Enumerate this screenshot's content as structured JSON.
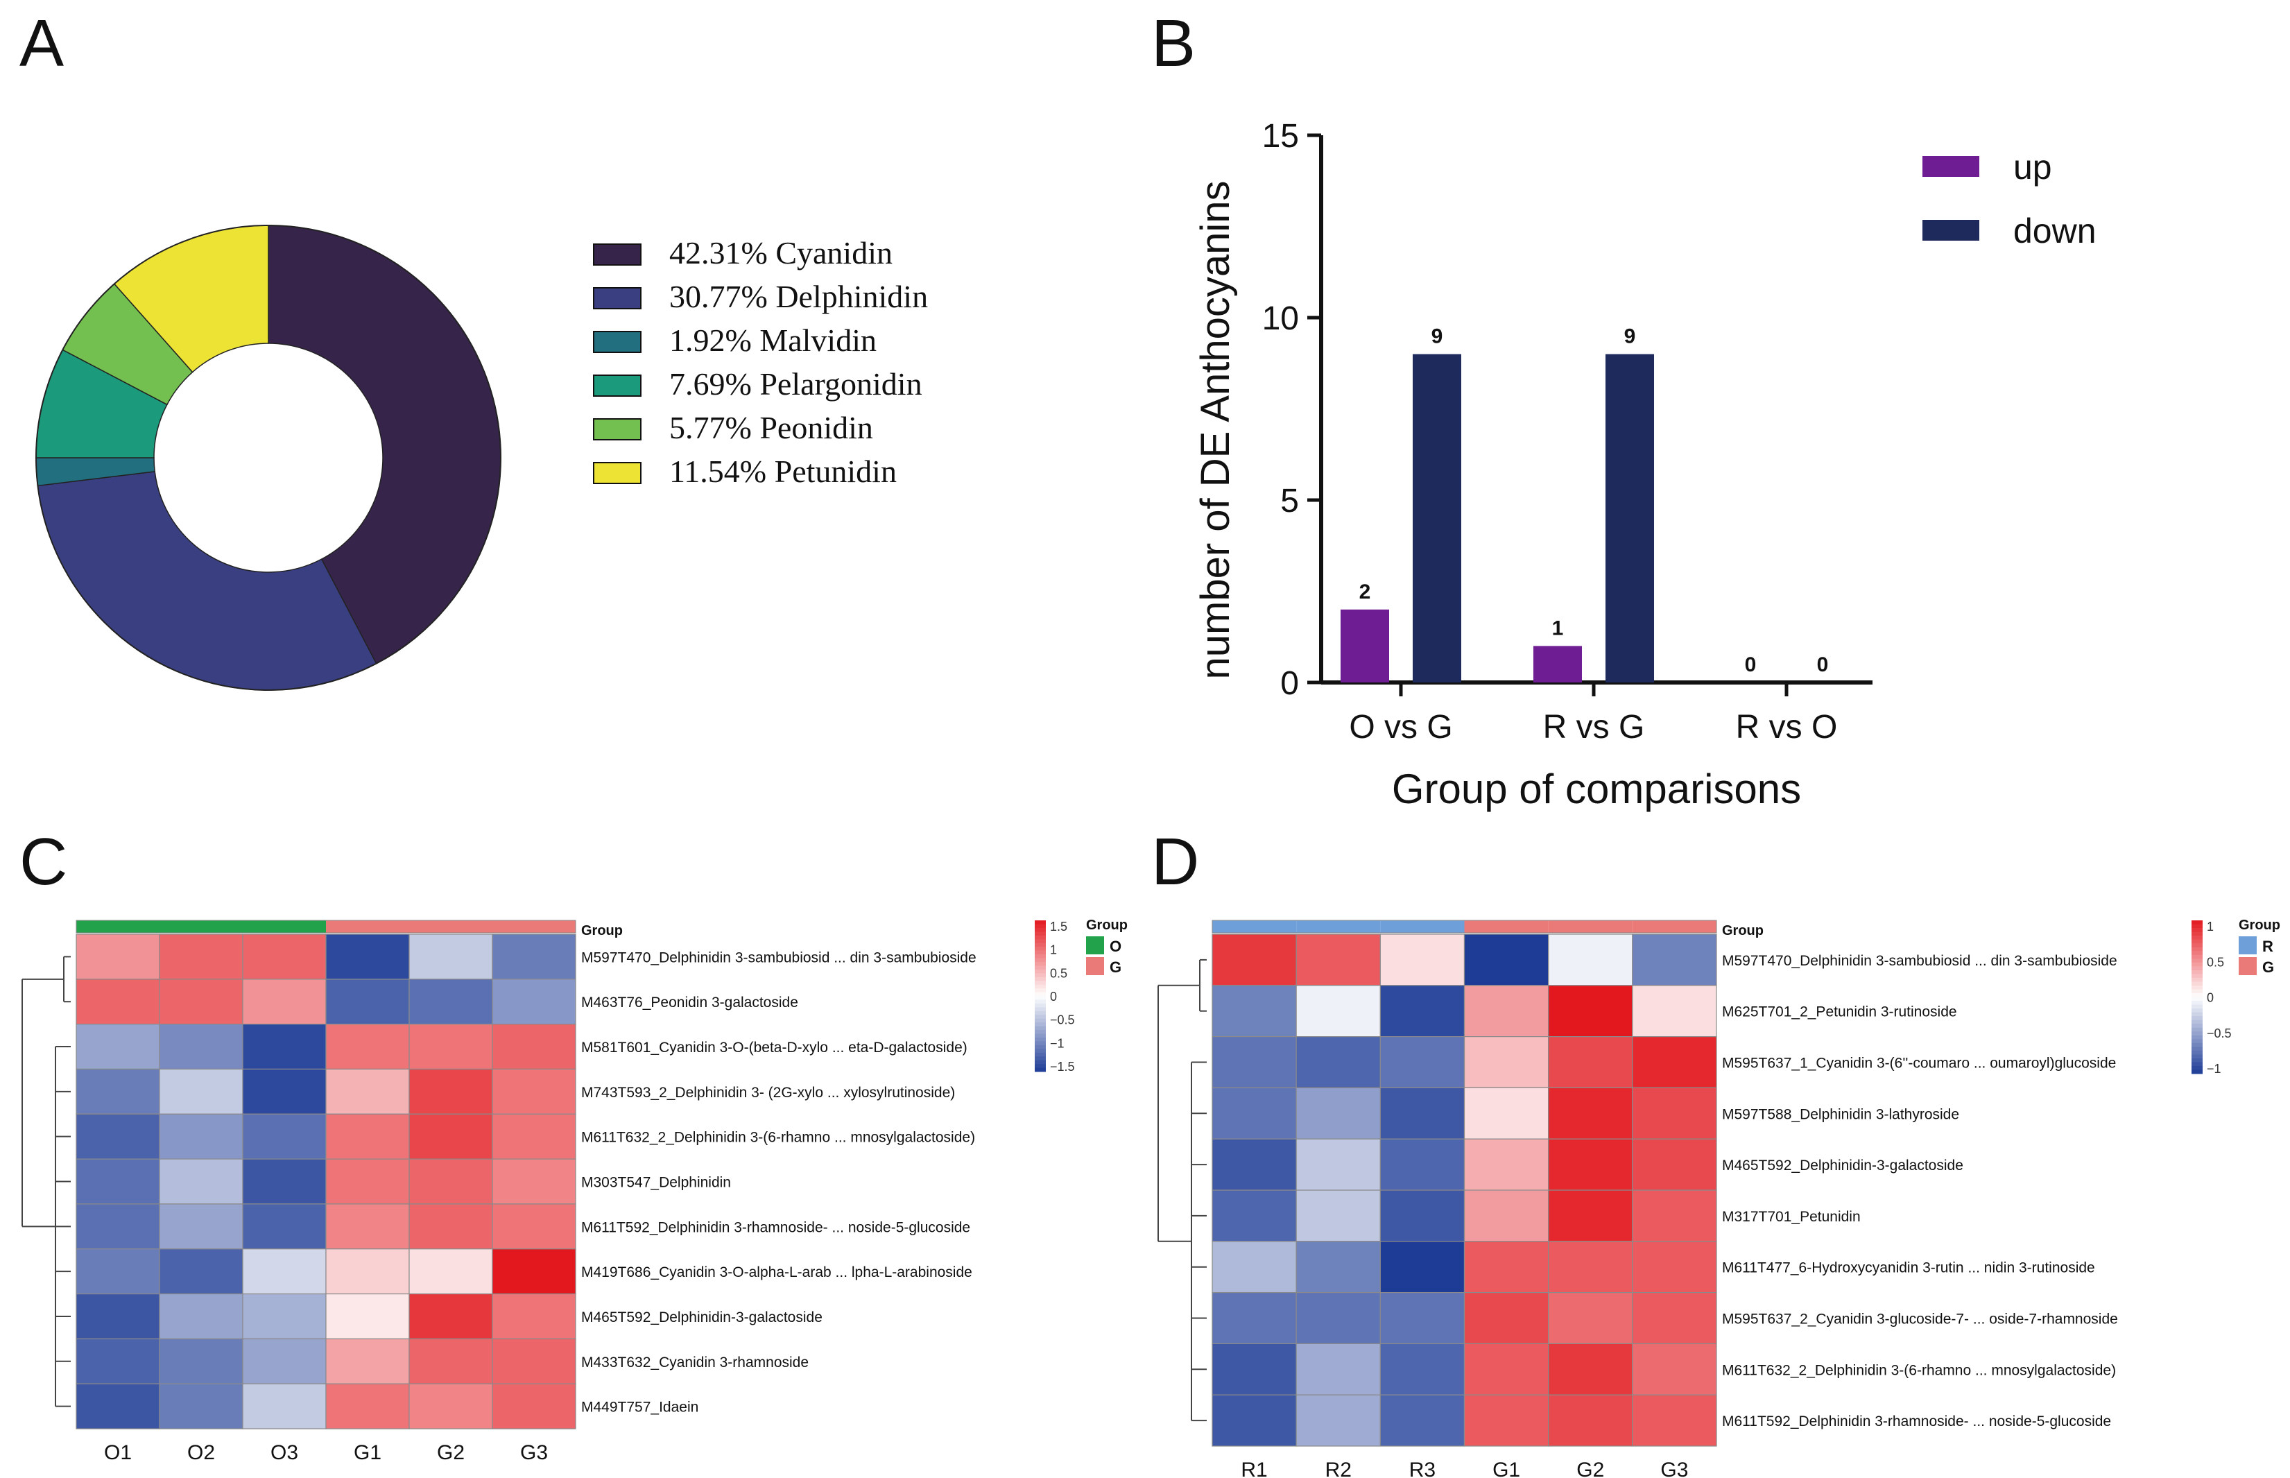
{
  "panels": {
    "A": "A",
    "B": "B",
    "C": "C",
    "D": "D"
  },
  "chart_data": [
    {
      "id": "A",
      "type": "pie",
      "variant": "donut",
      "labels": [
        "Cyanidin",
        "Delphinidin",
        "Malvidin",
        "Pelargonidin",
        "Peonidin",
        "Petunidin"
      ],
      "percent_text": [
        "42.31%",
        "30.77%",
        "1.92%",
        "7.69%",
        "5.77%",
        "11.54%"
      ],
      "values": [
        42.31,
        30.77,
        1.92,
        7.69,
        5.77,
        11.54
      ],
      "colors": [
        "#36244a",
        "#393f80",
        "#226f7f",
        "#1c9a7c",
        "#73bf4f",
        "#ede334"
      ],
      "legend_position": "right"
    },
    {
      "id": "B",
      "type": "bar",
      "categories": [
        "O vs G",
        "R vs G",
        "R vs O"
      ],
      "series": [
        {
          "name": "up",
          "values": [
            2,
            1,
            0
          ],
          "color": "#6e1d92"
        },
        {
          "name": "down",
          "values": [
            9,
            9,
            0
          ],
          "color": "#1e2a5b"
        }
      ],
      "xlabel": "Group of comparisons",
      "ylabel": "number  of DE Anthocyanins",
      "ylim": [
        0,
        15
      ],
      "yticks": [
        0,
        5,
        10,
        15
      ],
      "ytick_labels": [
        "0",
        "5",
        "10",
        "15"
      ],
      "legend_position": "top-right",
      "data_labels": true
    },
    {
      "id": "C",
      "type": "heatmap",
      "columns": [
        "O1",
        "O2",
        "O3",
        "G1",
        "G2",
        "G3"
      ],
      "group_label": "Group",
      "groups": [
        "O",
        "O",
        "O",
        "G",
        "G",
        "G"
      ],
      "legend_groups": [
        {
          "name": "O",
          "color": "#22a24a"
        },
        {
          "name": "G",
          "color": "#ea7a78"
        }
      ],
      "rows": [
        "M597T470_Delphinidin 3-sambubiosid ... din 3-sambubioside",
        "M463T76_Peonidin 3-galactoside",
        "M581T601_Cyanidin 3-O-(beta-D-xylo ... eta-D-galactoside)",
        "M743T593_2_Delphinidin 3- (2G-xylo ... xylosylrutinoside)",
        "M611T632_2_Delphinidin 3-(6-rhamno ... mnosylgalactoside)",
        "M303T547_Delphinidin",
        "M611T592_Delphinidin 3-rhamnoside- ... noside-5-glucoside",
        "M419T686_Cyanidin 3-O-alpha-L-arab ... lpha-L-arabinoside",
        "M465T592_Delphinidin-3-galactoside",
        "M433T632_Cyanidin 3-rhamnoside",
        "M449T757_Idaein"
      ],
      "values": [
        [
          0.7,
          1.0,
          1.0,
          -1.4,
          -0.4,
          -1.0
        ],
        [
          1.0,
          1.0,
          0.7,
          -1.2,
          -1.1,
          -0.8
        ],
        [
          -0.7,
          -0.9,
          -1.4,
          0.9,
          0.9,
          1.0
        ],
        [
          -1.0,
          -0.4,
          -1.4,
          0.5,
          1.2,
          0.9
        ],
        [
          -1.2,
          -0.8,
          -1.1,
          0.9,
          1.2,
          0.9
        ],
        [
          -1.1,
          -0.5,
          -1.3,
          0.9,
          1.0,
          0.8
        ],
        [
          -1.1,
          -0.7,
          -1.2,
          0.8,
          1.0,
          0.9
        ],
        [
          -1.0,
          -1.2,
          -0.3,
          0.3,
          0.2,
          1.5
        ],
        [
          -1.3,
          -0.7,
          -0.6,
          0.15,
          1.3,
          0.9
        ],
        [
          -1.2,
          -1.0,
          -0.7,
          0.6,
          1.0,
          1.0
        ],
        [
          -1.3,
          -1.0,
          -0.4,
          0.9,
          0.8,
          1.0
        ]
      ],
      "colorbar_ticks": [
        "1.5",
        "1",
        "0.5",
        "0",
        "−0.5",
        "−1",
        "−1.5"
      ],
      "colorbar_range": [
        -1.5,
        1.5
      ]
    },
    {
      "id": "D",
      "type": "heatmap",
      "columns": [
        "R1",
        "R2",
        "R3",
        "G1",
        "G2",
        "G3"
      ],
      "group_label": "Group",
      "groups": [
        "R",
        "R",
        "R",
        "G",
        "G",
        "G"
      ],
      "legend_groups": [
        {
          "name": "R",
          "color": "#6f9fd8"
        },
        {
          "name": "G",
          "color": "#ea7a78"
        }
      ],
      "rows": [
        "M597T470_Delphinidin 3-sambubiosid ... din 3-sambubioside",
        "M625T701_2_Petunidin 3-rutinoside",
        "M595T637_1_Cyanidin 3-(6''-coumaro ... oumaroyl)glucoside",
        "M597T588_Delphinidin 3-lathyroside",
        "M465T592_Delphinidin-3-galactoside",
        "M317T701_Petunidin",
        "M611T477_6-Hydroxycyanidin 3-rutin ... nidin 3-rutinoside",
        "M595T637_2_Cyanidin 3-glucoside-7- ... oside-7-rhamnoside",
        "M611T632_2_Delphinidin 3-(6-rhamno ... mnosylgalactoside)",
        "M611T592_Delphinidin 3-rhamnoside- ... noside-5-glucoside"
      ],
      "values": [
        [
          1.2,
          1.0,
          0.2,
          -1.4,
          -0.1,
          -0.9
        ],
        [
          -0.9,
          -0.1,
          -1.3,
          0.6,
          1.4,
          0.2
        ],
        [
          -1.0,
          -1.1,
          -1.0,
          0.4,
          1.1,
          1.3
        ],
        [
          -1.0,
          -0.7,
          -1.2,
          0.2,
          1.3,
          1.1
        ],
        [
          -1.2,
          -0.4,
          -1.1,
          0.5,
          1.3,
          1.1
        ],
        [
          -1.1,
          -0.4,
          -1.2,
          0.6,
          1.3,
          1.0
        ],
        [
          -0.5,
          -0.9,
          -1.4,
          1.0,
          1.0,
          1.0
        ],
        [
          -1.0,
          -1.0,
          -1.0,
          1.1,
          0.9,
          1.0
        ],
        [
          -1.2,
          -0.6,
          -1.1,
          1.0,
          1.2,
          0.9
        ],
        [
          -1.2,
          -0.6,
          -1.1,
          1.0,
          1.1,
          1.0
        ]
      ],
      "colorbar_ticks": [
        "1",
        "0.5",
        "0",
        "−0.5",
        "−1"
      ],
      "colorbar_range": [
        -1.4,
        1.4
      ]
    }
  ]
}
